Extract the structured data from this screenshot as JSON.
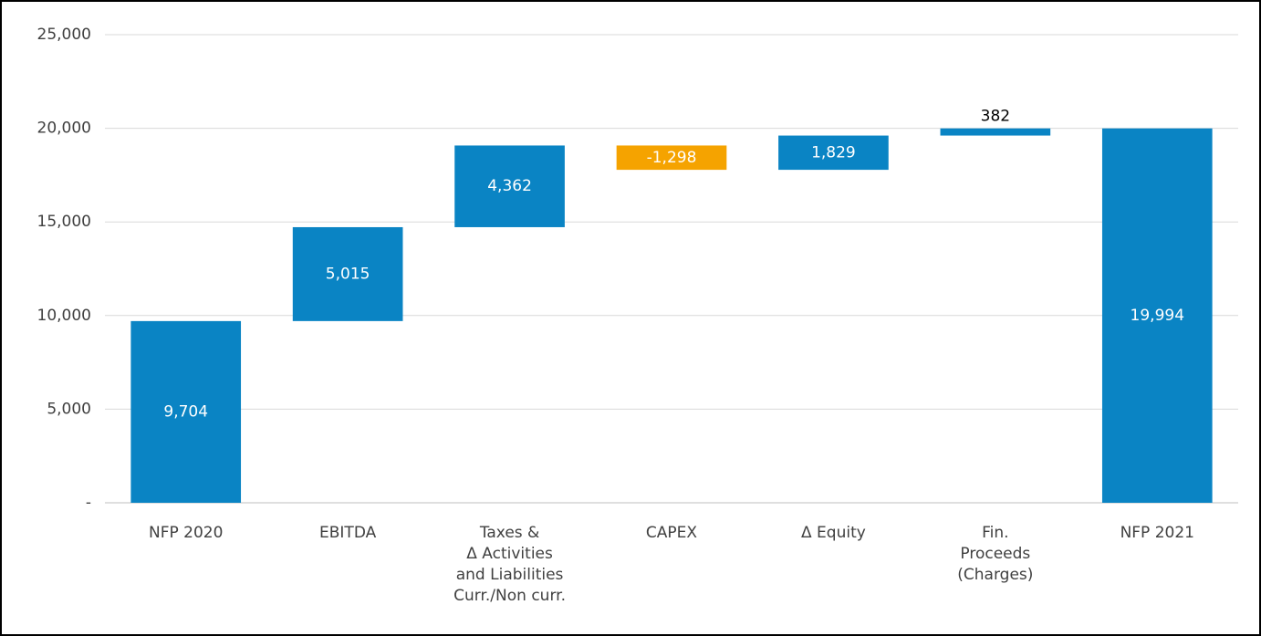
{
  "chart_data": {
    "type": "waterfall",
    "categories": [
      "NFP 2020",
      "EBITDA",
      "Taxes &\nΔ Activities\nand Liabilities\nCurr./Non curr.",
      "CAPEX",
      "Δ Equity",
      "Fin.\nProceeds\n(Charges)",
      "NFP 2021"
    ],
    "values": [
      9704,
      5015,
      4362,
      -1298,
      1829,
      382,
      19994
    ],
    "value_labels": [
      "9,704",
      "5,015",
      "4,362",
      "-1,298",
      "1,829",
      "382",
      "19,994"
    ],
    "color": "#0a84c4",
    "negative_color": "#f5a300",
    "ylim": [
      0,
      25000
    ],
    "yticks": [
      {
        "value": 0,
        "label": "-"
      },
      {
        "value": 5000,
        "label": "5,000"
      },
      {
        "value": 10000,
        "label": "10,000"
      },
      {
        "value": 15000,
        "label": "15,000"
      },
      {
        "value": 20000,
        "label": "20,000"
      },
      {
        "value": 25000,
        "label": "25,000"
      }
    ],
    "grid": true
  }
}
